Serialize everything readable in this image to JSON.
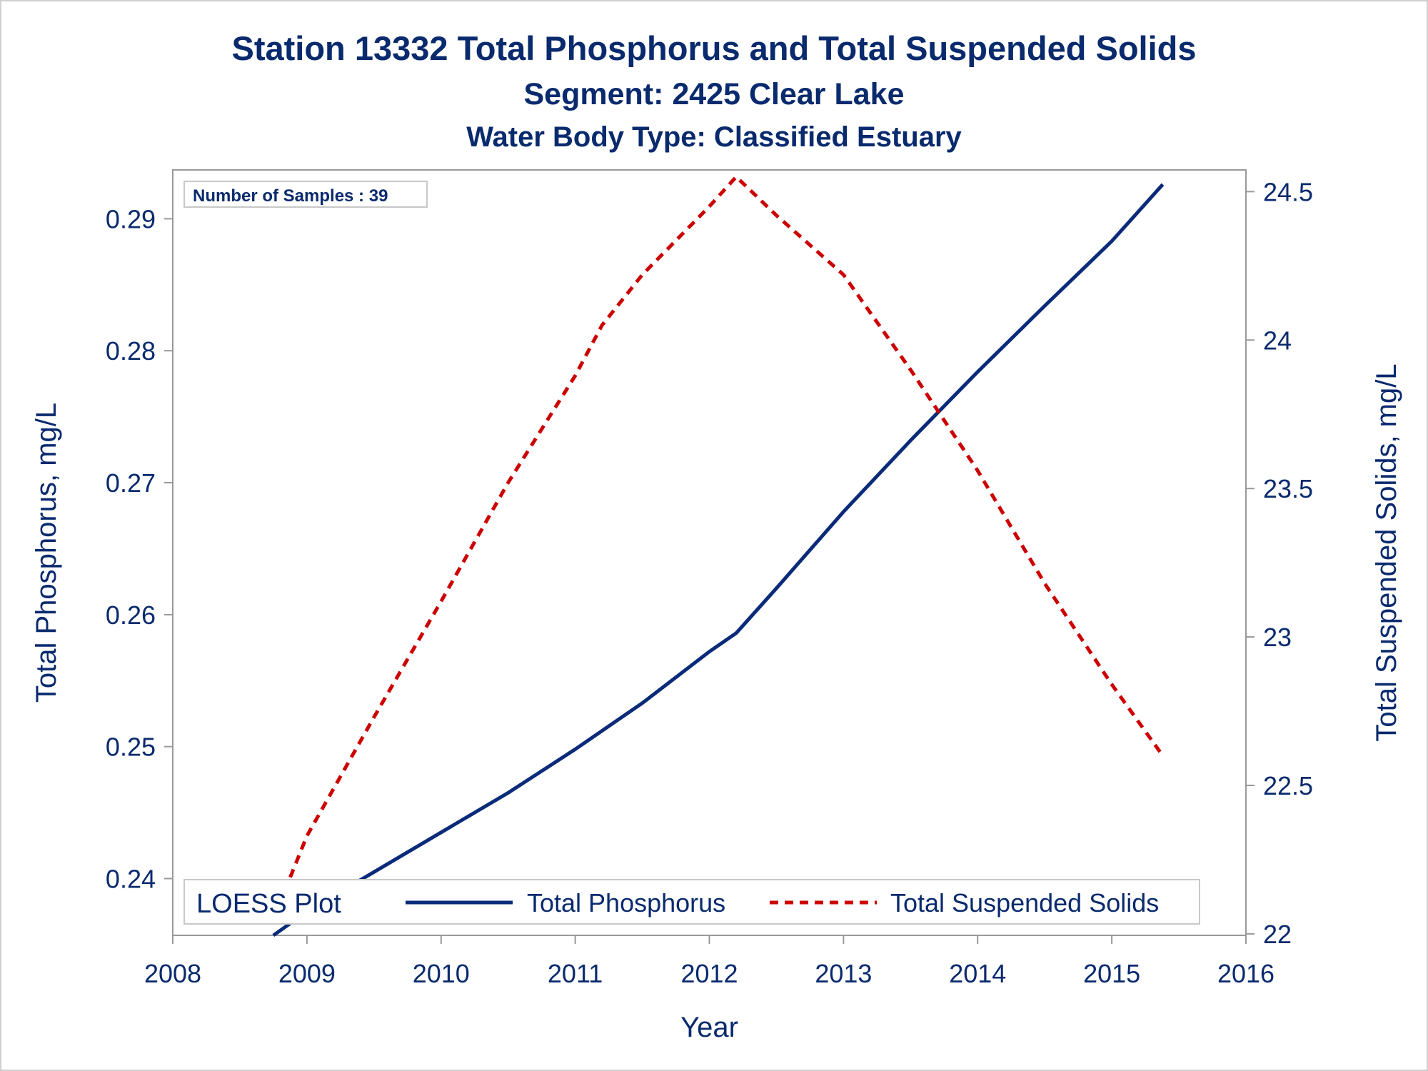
{
  "titles": {
    "line1": "Station 13332  Total Phosphorus and Total Suspended Solids",
    "line2": "Segment: 2425  Clear Lake",
    "line3": "Water Body Type: Classified Estuary"
  },
  "inset": {
    "text": "Number of Samples : 39"
  },
  "legend": {
    "title": "LOESS Plot",
    "items": [
      "Total Phosphorus",
      "Total Suspended Solids"
    ]
  },
  "colors": {
    "text": "#0a2a6e",
    "phosphorus": "#0a2a7a",
    "tss": "#cc0000",
    "axis": "#999999"
  },
  "chart_data": {
    "type": "line",
    "title": "Station 13332  Total Phosphorus and Total Suspended Solids",
    "subtitle": [
      "Segment: 2425  Clear Lake",
      "Water Body Type: Classified Estuary"
    ],
    "xlabel": "Year",
    "ylabel": "Total Phosphorus, mg/L",
    "y2label": "Total Suspended Solids, mg/L",
    "xlim": [
      2008,
      2016
    ],
    "xticks": [
      "2008",
      "2009",
      "2010",
      "2011",
      "2012",
      "2013",
      "2014",
      "2015",
      "2016"
    ],
    "ylim": [
      0.2357,
      0.2937
    ],
    "yticks": [
      "0.24",
      "0.25",
      "0.26",
      "0.27",
      "0.28",
      "0.29"
    ],
    "y2lim": [
      21.995,
      24.573
    ],
    "y2ticks": [
      "22",
      "22.5",
      "23",
      "23.5",
      "24",
      "24.5"
    ],
    "legend_position": "bottom-inside",
    "grid": false,
    "series": [
      {
        "name": "Total Phosphorus",
        "axis": "left",
        "style": "solid",
        "color": "#0a2a7a",
        "x": [
          2008.75,
          2009.0,
          2009.5,
          2010.0,
          2010.5,
          2011.0,
          2011.5,
          2012.0,
          2012.2,
          2012.5,
          2013.0,
          2013.5,
          2014.0,
          2014.5,
          2015.0,
          2015.38
        ],
        "y": [
          0.2357,
          0.2375,
          0.2405,
          0.2435,
          0.2465,
          0.2498,
          0.2533,
          0.2572,
          0.2586,
          0.262,
          0.2678,
          0.2732,
          0.2784,
          0.2834,
          0.2883,
          0.2926
        ]
      },
      {
        "name": "Total Suspended Solids",
        "axis": "right",
        "style": "dashed",
        "color": "#cc0000",
        "x": [
          2008.75,
          2009.0,
          2009.5,
          2010.0,
          2010.5,
          2011.0,
          2011.2,
          2011.5,
          2012.0,
          2012.2,
          2012.5,
          2013.0,
          2013.5,
          2014.0,
          2014.5,
          2015.0,
          2015.38
        ],
        "y": [
          22.05,
          22.33,
          22.73,
          23.12,
          23.52,
          23.88,
          24.05,
          24.22,
          24.45,
          24.55,
          24.42,
          24.22,
          23.9,
          23.56,
          23.18,
          22.84,
          22.6
        ]
      }
    ]
  }
}
